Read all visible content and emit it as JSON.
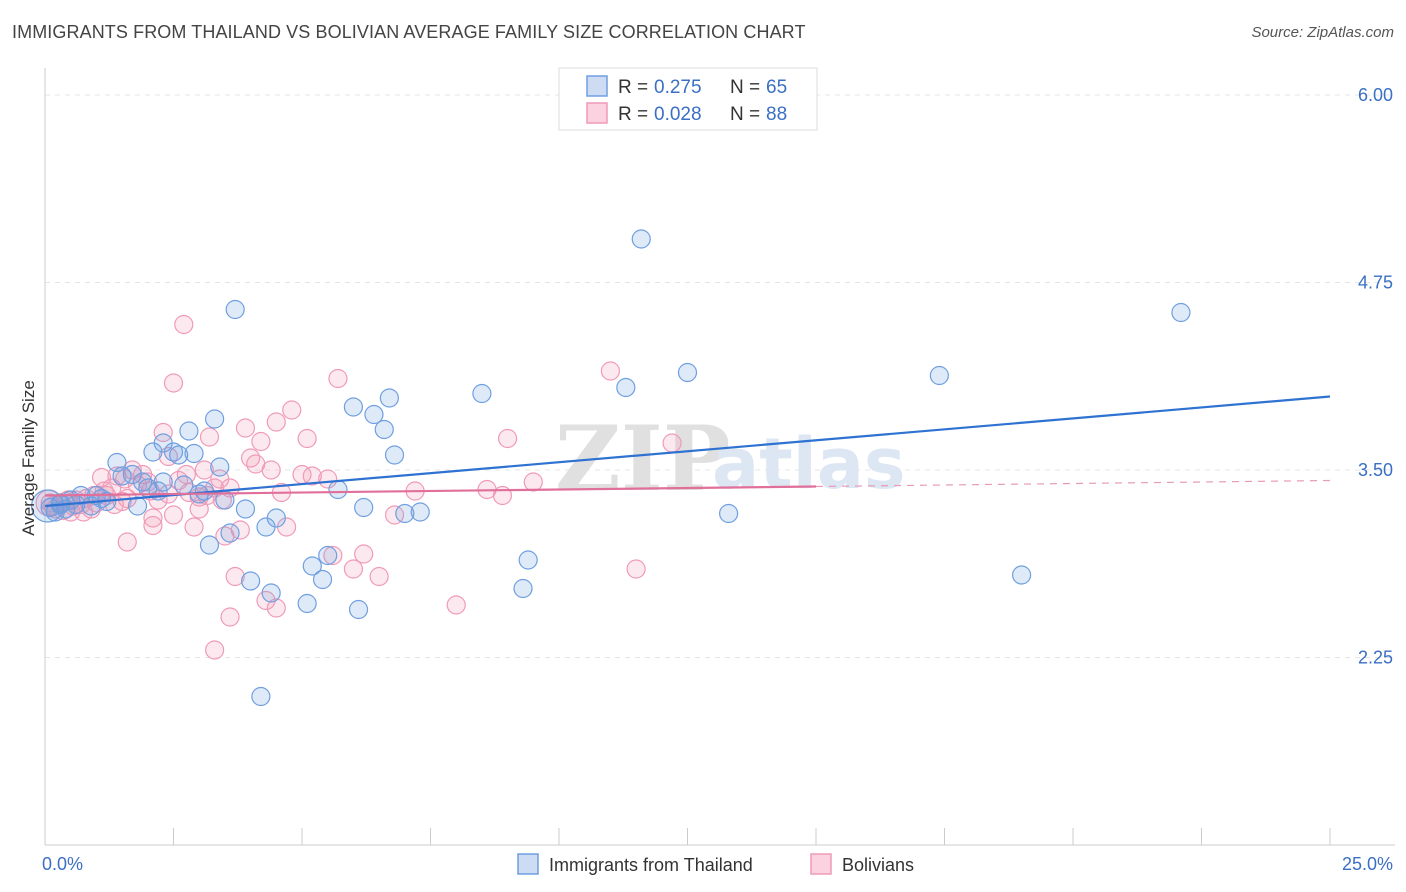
{
  "title": "IMMIGRANTS FROM THAILAND VS BOLIVIAN AVERAGE FAMILY SIZE CORRELATION CHART",
  "source": "Source: ZipAtlas.com",
  "watermark": {
    "zip": "ZIP",
    "atlas": "atlas"
  },
  "legend": {
    "r_label": "R =",
    "n_label": "N =",
    "rows": [
      {
        "r": "0.275",
        "n": "65",
        "color": "#6f9fe0"
      },
      {
        "r": "0.028",
        "n": "88",
        "color": "#f09ab8"
      }
    ]
  },
  "bottom_legend": [
    {
      "label": "Immigrants from Thailand",
      "color": "#6f9fe0"
    },
    {
      "label": "Bolivians",
      "color": "#f09ab8"
    }
  ],
  "chart_data": {
    "type": "scatter",
    "ylabel": "Average Family Size",
    "xlim": [
      0,
      25
    ],
    "ylim": [
      1.0,
      6.1
    ],
    "x_tick_labels": [
      {
        "x": 0,
        "label": "0.0%"
      },
      {
        "x": 25,
        "label": "25.0%"
      }
    ],
    "y_ticks": [
      {
        "y": 2.25,
        "label": "2.25"
      },
      {
        "y": 3.5,
        "label": "3.50"
      },
      {
        "y": 4.75,
        "label": "4.75"
      },
      {
        "y": 6.0,
        "label": "6.00"
      }
    ],
    "grid": true,
    "series": [
      {
        "name": "Immigrants from Thailand",
        "color": "#6f9fe0",
        "trend": {
          "x": [
            0,
            25
          ],
          "y": [
            3.26,
            3.99
          ]
        },
        "points": [
          [
            0.1,
            3.25
          ],
          [
            0.2,
            3.22
          ],
          [
            0.3,
            3.27
          ],
          [
            0.4,
            3.24
          ],
          [
            0.5,
            3.3
          ],
          [
            0.6,
            3.27
          ],
          [
            0.7,
            3.33
          ],
          [
            0.9,
            3.26
          ],
          [
            1.0,
            3.33
          ],
          [
            1.1,
            3.31
          ],
          [
            1.4,
            3.55
          ],
          [
            1.5,
            3.46
          ],
          [
            1.7,
            3.47
          ],
          [
            1.8,
            3.26
          ],
          [
            1.9,
            3.42
          ],
          [
            2.0,
            3.38
          ],
          [
            2.1,
            3.62
          ],
          [
            2.2,
            3.36
          ],
          [
            2.3,
            3.42
          ],
          [
            2.3,
            3.68
          ],
          [
            2.5,
            3.62
          ],
          [
            2.6,
            3.6
          ],
          [
            2.7,
            3.4
          ],
          [
            2.8,
            3.76
          ],
          [
            2.9,
            3.61
          ],
          [
            3.0,
            3.34
          ],
          [
            3.1,
            3.36
          ],
          [
            3.2,
            3.0
          ],
          [
            3.3,
            3.84
          ],
          [
            3.4,
            3.52
          ],
          [
            3.5,
            3.3
          ],
          [
            3.6,
            3.08
          ],
          [
            3.7,
            4.57
          ],
          [
            3.9,
            3.24
          ],
          [
            4.0,
            2.76
          ],
          [
            4.2,
            1.99
          ],
          [
            4.3,
            3.12
          ],
          [
            4.4,
            2.68
          ],
          [
            4.5,
            3.18
          ],
          [
            5.1,
            2.61
          ],
          [
            5.2,
            2.86
          ],
          [
            5.4,
            2.77
          ],
          [
            5.5,
            2.93
          ],
          [
            5.7,
            3.37
          ],
          [
            6.0,
            3.92
          ],
          [
            6.1,
            2.57
          ],
          [
            6.2,
            3.25
          ],
          [
            6.4,
            3.87
          ],
          [
            6.6,
            3.77
          ],
          [
            6.7,
            3.98
          ],
          [
            6.8,
            3.6
          ],
          [
            7.0,
            3.21
          ],
          [
            7.3,
            3.22
          ],
          [
            8.5,
            4.01
          ],
          [
            9.3,
            2.71
          ],
          [
            9.4,
            2.9
          ],
          [
            11.3,
            4.05
          ],
          [
            11.6,
            5.04
          ],
          [
            12.5,
            4.15
          ],
          [
            13.3,
            3.21
          ],
          [
            17.4,
            4.13
          ],
          [
            19.0,
            2.8
          ],
          [
            22.1,
            4.55
          ],
          [
            0.3,
            3.28
          ],
          [
            1.2,
            3.29
          ]
        ]
      },
      {
        "name": "Bolivians",
        "color": "#f09ab8",
        "trend": {
          "x": [
            0,
            15
          ],
          "y": [
            3.33,
            3.39
          ]
        },
        "trend_dashed": {
          "x": [
            15,
            25
          ],
          "y": [
            3.39,
            3.43
          ]
        },
        "points": [
          [
            0.1,
            3.28
          ],
          [
            0.2,
            3.24
          ],
          [
            0.3,
            3.27
          ],
          [
            0.4,
            3.29
          ],
          [
            0.5,
            3.22
          ],
          [
            0.6,
            3.3
          ],
          [
            0.7,
            3.27
          ],
          [
            0.8,
            3.31
          ],
          [
            0.9,
            3.24
          ],
          [
            1.0,
            3.28
          ],
          [
            1.1,
            3.45
          ],
          [
            1.2,
            3.33
          ],
          [
            1.3,
            3.38
          ],
          [
            1.4,
            3.46
          ],
          [
            1.5,
            3.29
          ],
          [
            1.6,
            3.31
          ],
          [
            1.7,
            3.5
          ],
          [
            1.8,
            3.4
          ],
          [
            1.9,
            3.47
          ],
          [
            2.0,
            3.42
          ],
          [
            2.1,
            3.18
          ],
          [
            2.2,
            3.3
          ],
          [
            2.3,
            3.75
          ],
          [
            2.4,
            3.59
          ],
          [
            2.5,
            3.2
          ],
          [
            2.5,
            4.08
          ],
          [
            2.6,
            3.43
          ],
          [
            2.7,
            4.47
          ],
          [
            2.8,
            3.35
          ],
          [
            2.9,
            3.12
          ],
          [
            3.0,
            3.24
          ],
          [
            3.1,
            3.5
          ],
          [
            3.2,
            3.72
          ],
          [
            3.3,
            3.38
          ],
          [
            3.4,
            3.44
          ],
          [
            3.5,
            3.06
          ],
          [
            3.6,
            3.38
          ],
          [
            3.7,
            2.79
          ],
          [
            3.8,
            3.1
          ],
          [
            3.9,
            3.78
          ],
          [
            4.0,
            3.58
          ],
          [
            4.1,
            3.54
          ],
          [
            4.2,
            3.69
          ],
          [
            4.3,
            2.63
          ],
          [
            4.4,
            3.5
          ],
          [
            4.5,
            3.82
          ],
          [
            4.6,
            3.35
          ],
          [
            4.7,
            3.12
          ],
          [
            4.8,
            3.9
          ],
          [
            5.0,
            3.47
          ],
          [
            5.1,
            3.71
          ],
          [
            5.2,
            3.46
          ],
          [
            5.5,
            3.44
          ],
          [
            5.6,
            2.93
          ],
          [
            5.7,
            4.11
          ],
          [
            6.0,
            2.84
          ],
          [
            6.2,
            2.94
          ],
          [
            6.5,
            2.79
          ],
          [
            6.8,
            3.2
          ],
          [
            7.2,
            3.36
          ],
          [
            8.0,
            2.6
          ],
          [
            8.6,
            3.37
          ],
          [
            8.9,
            3.33
          ],
          [
            9.0,
            3.71
          ],
          [
            9.5,
            3.42
          ],
          [
            11.0,
            4.16
          ],
          [
            11.5,
            2.84
          ],
          [
            12.2,
            3.68
          ],
          [
            1.6,
            3.02
          ],
          [
            2.1,
            3.13
          ],
          [
            3.3,
            2.3
          ],
          [
            3.6,
            2.52
          ],
          [
            4.5,
            2.58
          ],
          [
            3.0,
            3.32
          ],
          [
            0.15,
            3.26
          ],
          [
            0.35,
            3.23
          ],
          [
            0.55,
            3.26
          ],
          [
            0.75,
            3.22
          ],
          [
            0.95,
            3.33
          ],
          [
            1.15,
            3.36
          ],
          [
            1.35,
            3.27
          ],
          [
            1.55,
            3.44
          ],
          [
            2.05,
            3.36
          ],
          [
            2.4,
            3.34
          ],
          [
            2.75,
            3.47
          ],
          [
            3.15,
            3.33
          ],
          [
            3.45,
            3.3
          ],
          [
            0.45,
            3.3
          ]
        ]
      }
    ]
  }
}
